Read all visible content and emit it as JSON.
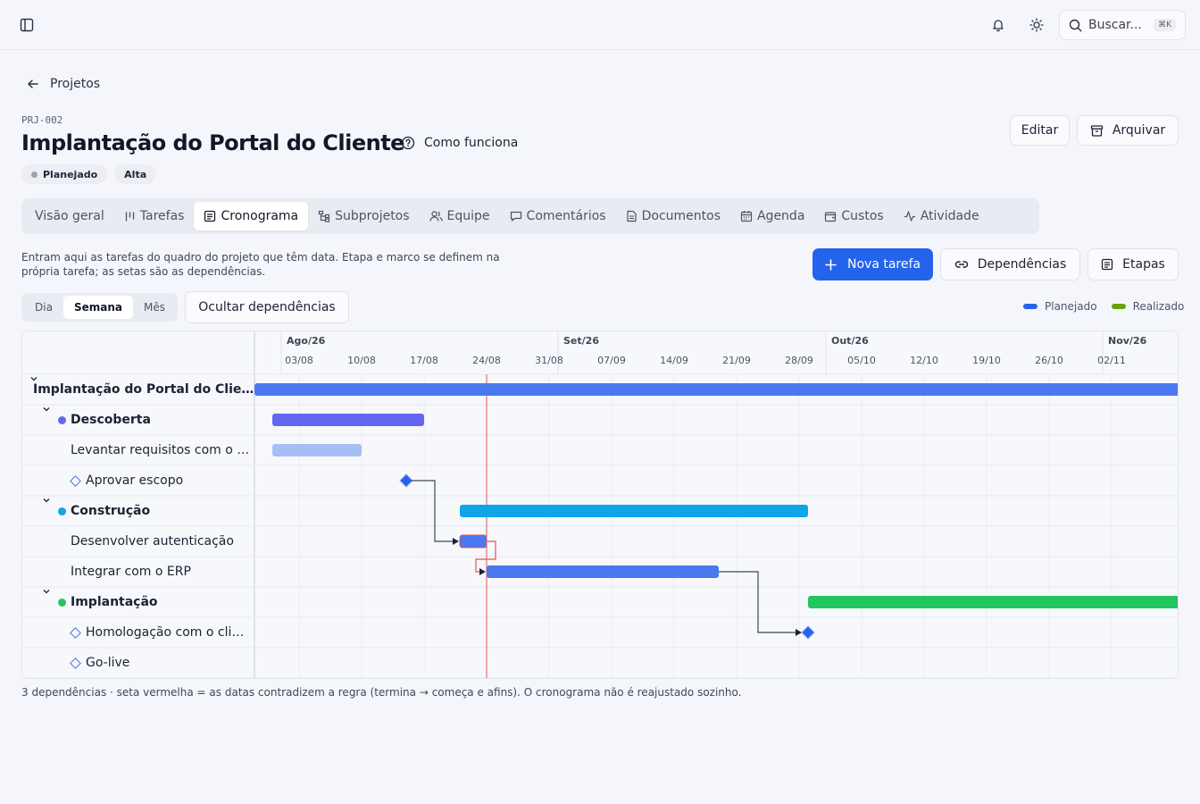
{
  "topbar": {
    "search_placeholder": "Buscar...",
    "search_shortcut": "⌘K",
    "icons": [
      "sidebar-toggle-icon",
      "bell-icon",
      "sun-icon",
      "search-icon"
    ]
  },
  "breadcrumb": {
    "back_label": "Projetos"
  },
  "project": {
    "code": "PRJ-002",
    "title": "Implantação do Portal do Cliente",
    "help_label": "Como funciona",
    "status": "Planejado",
    "priority": "Alta"
  },
  "actions": {
    "edit": "Editar",
    "archive": "Arquivar"
  },
  "tabs": [
    {
      "label": "Visão geral",
      "icon": ""
    },
    {
      "label": "Tarefas",
      "icon": "columns-icon"
    },
    {
      "label": "Cronograma",
      "icon": "list-icon"
    },
    {
      "label": "Subprojetos",
      "icon": "tree-icon"
    },
    {
      "label": "Equipe",
      "icon": "users-icon"
    },
    {
      "label": "Comentários",
      "icon": "comment-icon"
    },
    {
      "label": "Documentos",
      "icon": "document-icon"
    },
    {
      "label": "Agenda",
      "icon": "calendar-icon"
    },
    {
      "label": "Custos",
      "icon": "wallet-icon"
    },
    {
      "label": "Atividade",
      "icon": "activity-icon"
    }
  ],
  "active_tab": "Cronograma",
  "schedule": {
    "description": "Entram aqui as tarefas do quadro do projeto que têm data. Etapa e marco se definem na própria tarefa; as setas são as dependências.",
    "new_task": "Nova tarefa",
    "dependencies": "Dependências",
    "stages": "Etapas",
    "views": [
      "Dia",
      "Semana",
      "Mês"
    ],
    "active_view": "Semana",
    "hide_dependencies": "Ocultar dependências",
    "legend": [
      {
        "label": "Planejado",
        "color": "#2463eb"
      },
      {
        "label": "Realizado",
        "color": "#65a30d"
      }
    ],
    "months": [
      "Ago/26",
      "Set/26",
      "Out/26",
      "Nov/26"
    ],
    "weeks": [
      "03/08",
      "10/08",
      "17/08",
      "24/08",
      "31/08",
      "07/09",
      "14/09",
      "21/09",
      "28/09",
      "05/10",
      "12/10",
      "19/10",
      "26/10",
      "02/11"
    ],
    "rows": [
      {
        "label": "Implantação do Portal do Clie…",
        "kind": "project"
      },
      {
        "label": "Descoberta",
        "kind": "stage",
        "color": "#6366f1"
      },
      {
        "label": "Levantar requisitos com o …",
        "kind": "task"
      },
      {
        "label": "Aprovar escopo",
        "kind": "milestone"
      },
      {
        "label": "Construção",
        "kind": "stage",
        "color": "#0ea5e9"
      },
      {
        "label": "Desenvolver autenticação",
        "kind": "task"
      },
      {
        "label": "Integrar com o ERP",
        "kind": "task"
      },
      {
        "label": "Implantação",
        "kind": "stage",
        "color": "#22c55e"
      },
      {
        "label": "Homologação com o cli…",
        "kind": "milestone"
      },
      {
        "label": "Go-live",
        "kind": "milestone"
      }
    ],
    "footer": "3 dependências · seta vermelha = as datas contradizem a regra (termina → começa e afins). O cronograma não é reajustado sozinho."
  },
  "chart_data": {
    "type": "gantt",
    "time_unit": "week",
    "today": "24/08",
    "bars": [
      {
        "row": 0,
        "start": "29/07",
        "end": "beyond 02/11",
        "color": "#4a78ef"
      },
      {
        "row": 1,
        "start": "31/07",
        "end": "17/08",
        "color": "#6366f1"
      },
      {
        "row": 2,
        "start": "31/07",
        "end": "10/08",
        "color": "#a7bdf5"
      },
      {
        "row": 3,
        "milestone": "15/08",
        "color": "#2463eb"
      },
      {
        "row": 4,
        "start": "21/08",
        "end": "29/09",
        "color": "#0ea5e9"
      },
      {
        "row": 5,
        "start": "21/08",
        "end": "24/08",
        "color": "#4a78ef",
        "conflict": true
      },
      {
        "row": 6,
        "start": "24/08",
        "end": "19/09",
        "color": "#4a78ef"
      },
      {
        "row": 7,
        "start": "29/09",
        "end": "beyond 02/11",
        "color": "#22c55e"
      },
      {
        "row": 8,
        "milestone": "29/09",
        "color": "#2463eb"
      }
    ],
    "dependencies": [
      {
        "from": 3,
        "to": 5
      },
      {
        "from": 5,
        "to": 6,
        "conflict": true
      },
      {
        "from": 6,
        "to": 8
      }
    ]
  }
}
